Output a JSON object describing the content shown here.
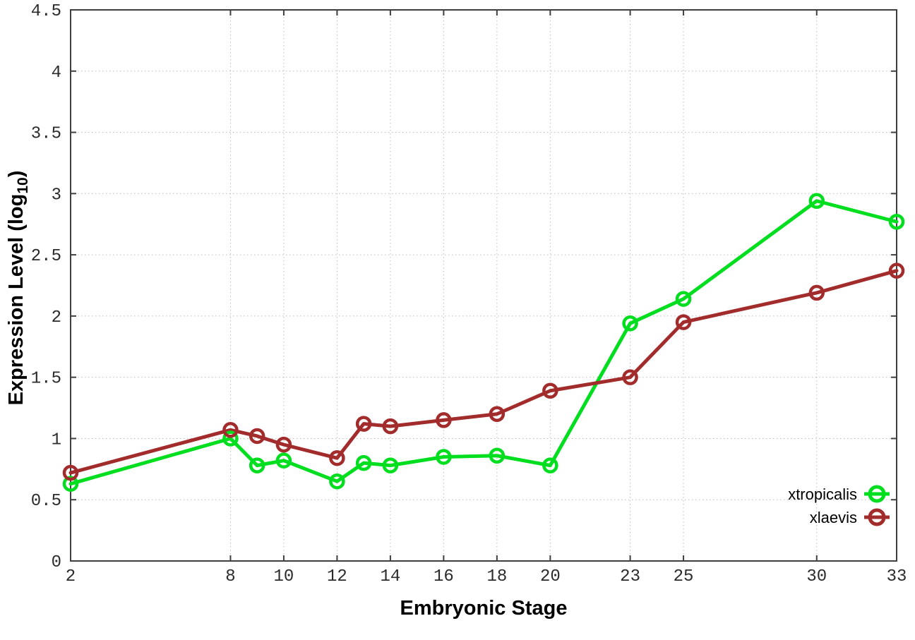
{
  "chart_data": {
    "type": "line",
    "title": "",
    "xlabel": "Embryonic Stage",
    "ylabel": "Expression Level (log10)",
    "ylabel_parts": {
      "prefix": "Expression Level (log",
      "subscript": "10",
      "suffix": ")"
    },
    "x": [
      2,
      8,
      9,
      10,
      12,
      13,
      14,
      16,
      18,
      20,
      23,
      25,
      30,
      33
    ],
    "xlim": [
      2,
      33
    ],
    "ylim": [
      0,
      4.5
    ],
    "xtick_values": [
      2,
      8,
      10,
      12,
      14,
      16,
      18,
      20,
      23,
      25,
      30,
      33
    ],
    "xtick_labels": [
      "2",
      "8",
      "10",
      "12",
      "14",
      "16",
      "18",
      "20",
      "23",
      "25",
      "30",
      "33"
    ],
    "ytick_values": [
      0,
      0.5,
      1,
      1.5,
      2,
      2.5,
      3,
      3.5,
      4,
      4.5
    ],
    "ytick_labels": [
      "0",
      "0.5",
      "1",
      "1.5",
      "2",
      "2.5",
      "3",
      "3.5",
      "4",
      "4.5"
    ],
    "grid": true,
    "legend_position": "bottom-right",
    "series": [
      {
        "name": "xtropicalis",
        "color": "#00de1f",
        "marker": "open-circle",
        "values": [
          0.63,
          1.0,
          0.78,
          0.82,
          0.65,
          0.8,
          0.78,
          0.85,
          0.86,
          0.78,
          1.94,
          2.14,
          2.94,
          2.77
        ]
      },
      {
        "name": "xlaevis",
        "color": "#a22c2c",
        "marker": "open-circle",
        "values": [
          0.72,
          1.07,
          1.02,
          0.95,
          0.84,
          1.12,
          1.1,
          1.15,
          1.2,
          1.39,
          1.5,
          1.95,
          2.19,
          2.37
        ]
      }
    ],
    "colors": {
      "grid": "#bdbdbd",
      "border": "#3f3f3f",
      "tick_label": "#2b2b2b",
      "axis_title": "#000000",
      "legend_text": "#000000"
    }
  }
}
